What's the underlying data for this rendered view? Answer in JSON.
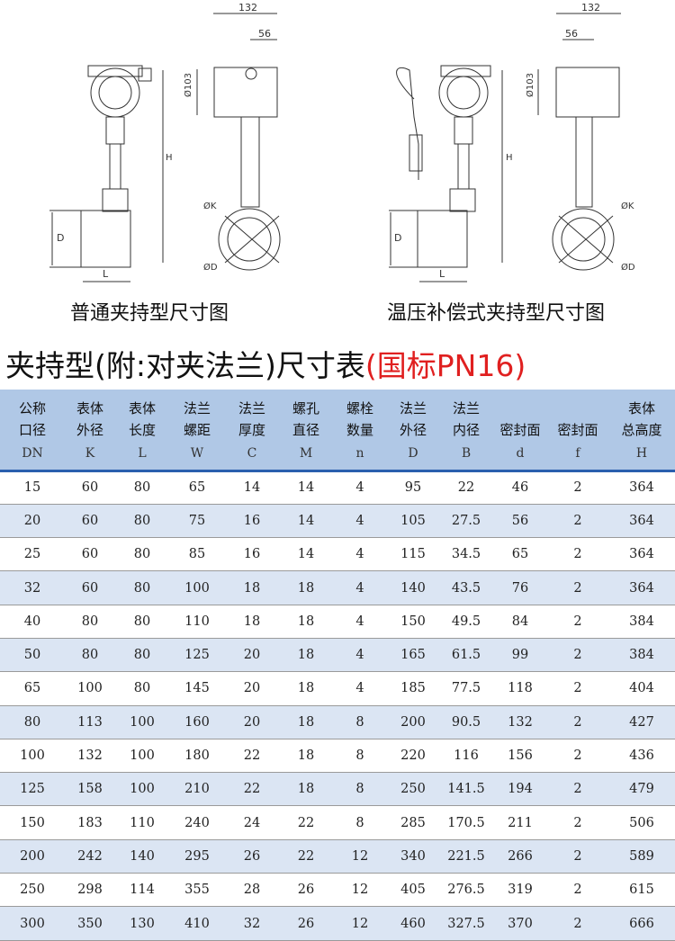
{
  "drawings": {
    "left": {
      "caption": "普通夹持型尺寸图",
      "dim_width": "132",
      "dim_offset": "56",
      "dim_head": "Ø103",
      "dim_height": "H",
      "dim_pipe": "D",
      "dim_length": "L",
      "dim_k": "ØK",
      "dim_d": "ØD"
    },
    "right": {
      "caption": "温压补偿式夹持型尺寸图",
      "dim_width": "132",
      "dim_offset": "56",
      "dim_head": "Ø103",
      "dim_height": "H",
      "dim_pipe": "D",
      "dim_length": "L",
      "dim_k": "ØK",
      "dim_d": "ØD"
    }
  },
  "title": {
    "main": "夹持型(附:对夹法兰)尺寸表",
    "standard": "(国标PN16)"
  },
  "colors": {
    "header_bg": "#b0c8e6",
    "header_line": "#2a5fae",
    "alt_row": "#dbe5f3",
    "standard_text": "#e02020"
  },
  "table": {
    "columns": [
      {
        "l1": "公称",
        "l2": "口径",
        "sym": "DN"
      },
      {
        "l1": "表体",
        "l2": "外径",
        "sym": "K"
      },
      {
        "l1": "表体",
        "l2": "长度",
        "sym": "L"
      },
      {
        "l1": "法兰",
        "l2": "螺距",
        "sym": "W"
      },
      {
        "l1": "法兰",
        "l2": "厚度",
        "sym": "C"
      },
      {
        "l1": "螺孔",
        "l2": "直径",
        "sym": "M"
      },
      {
        "l1": "螺栓",
        "l2": "数量",
        "sym": "n"
      },
      {
        "l1": "法兰",
        "l2": "外径",
        "sym": "D"
      },
      {
        "l1": "法兰",
        "l2": "内径",
        "sym": "B"
      },
      {
        "l1": "",
        "l2": "密封面",
        "sym": "d"
      },
      {
        "l1": "",
        "l2": "密封面",
        "sym": "f"
      },
      {
        "l1": "表体",
        "l2": "总高度",
        "sym": "H"
      }
    ],
    "rows": [
      [
        "15",
        "60",
        "80",
        "65",
        "14",
        "14",
        "4",
        "95",
        "22",
        "46",
        "2",
        "364"
      ],
      [
        "20",
        "60",
        "80",
        "75",
        "16",
        "14",
        "4",
        "105",
        "27.5",
        "56",
        "2",
        "364"
      ],
      [
        "25",
        "60",
        "80",
        "85",
        "16",
        "14",
        "4",
        "115",
        "34.5",
        "65",
        "2",
        "364"
      ],
      [
        "32",
        "60",
        "80",
        "100",
        "18",
        "18",
        "4",
        "140",
        "43.5",
        "76",
        "2",
        "364"
      ],
      [
        "40",
        "80",
        "80",
        "110",
        "18",
        "18",
        "4",
        "150",
        "49.5",
        "84",
        "2",
        "384"
      ],
      [
        "50",
        "80",
        "80",
        "125",
        "20",
        "18",
        "4",
        "165",
        "61.5",
        "99",
        "2",
        "384"
      ],
      [
        "65",
        "100",
        "80",
        "145",
        "20",
        "18",
        "4",
        "185",
        "77.5",
        "118",
        "2",
        "404"
      ],
      [
        "80",
        "113",
        "100",
        "160",
        "20",
        "18",
        "8",
        "200",
        "90.5",
        "132",
        "2",
        "427"
      ],
      [
        "100",
        "132",
        "100",
        "180",
        "22",
        "18",
        "8",
        "220",
        "116",
        "156",
        "2",
        "436"
      ],
      [
        "125",
        "158",
        "100",
        "210",
        "22",
        "18",
        "8",
        "250",
        "141.5",
        "194",
        "2",
        "479"
      ],
      [
        "150",
        "183",
        "110",
        "240",
        "24",
        "22",
        "8",
        "285",
        "170.5",
        "211",
        "2",
        "506"
      ],
      [
        "200",
        "242",
        "140",
        "295",
        "26",
        "22",
        "12",
        "340",
        "221.5",
        "266",
        "2",
        "589"
      ],
      [
        "250",
        "298",
        "114",
        "355",
        "28",
        "26",
        "12",
        "405",
        "276.5",
        "319",
        "2",
        "615"
      ],
      [
        "300",
        "350",
        "130",
        "410",
        "32",
        "26",
        "12",
        "460",
        "327.5",
        "370",
        "2",
        "666"
      ]
    ]
  }
}
